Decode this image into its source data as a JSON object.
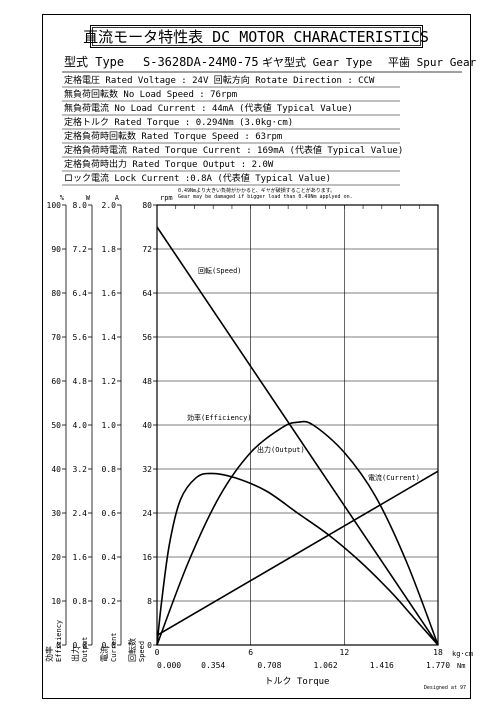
{
  "title": "直流モータ特性表 DC MOTOR CHARACTERISTICS",
  "type_row": {
    "model_label": "型式 Type",
    "model_value": "S-3628DA-24M0-75",
    "gear_label": "ギヤ型式 Gear Type",
    "gear_value": "平歯  Spur Gear"
  },
  "specs": [
    "定格電圧 Rated Voltage : 24V   回転方向 Rotate Direction : CCW",
    "無負荷回転数 No Load Speed : 76rpm",
    "無負荷電流 No Load Current : 44mA (代表値 Typical Value)",
    "定格トルク Rated Torque : 0.294Nm (3.0kg·cm)",
    "定格負荷時回転数 Rated Torque Speed : 63rpm",
    "定格負荷時電流 Rated Torque Current : 169mA (代表値 Typical Value)",
    "定格負荷時出力 Rated Torque Output : 2.0W",
    "ロック電流 Lock Current :0.8A (代表値 Typical Value)"
  ],
  "warning": [
    "0.49Nmより大きい負荷がかかると、ギヤが破損することがあります。",
    "Gear may be damaged if bigger load than 0.49Nm applyed on."
  ],
  "footer": "Designed at 97",
  "chart_data": {
    "type": "line",
    "xlabel": "トルク Torque",
    "x_kgcm_unit": "kg·cm",
    "x_nm_unit": "Nm",
    "x_kgcm_ticks": [
      "0",
      "6",
      "12",
      "18"
    ],
    "x_nm_ticks": [
      "0.000",
      "0.354",
      "0.708",
      "1.062",
      "1.416",
      "1.770"
    ],
    "xlim_kgcm": [
      0,
      18
    ],
    "axes": [
      {
        "unit": "%",
        "name": "効率 Efficiency",
        "ticks": [
          "100",
          "90",
          "80",
          "70",
          "60",
          "50",
          "40",
          "30",
          "20",
          "10",
          "0"
        ],
        "range": [
          0,
          100
        ]
      },
      {
        "unit": "W",
        "name": "出力 Output",
        "ticks": [
          "8.0",
          "7.2",
          "6.4",
          "5.6",
          "4.8",
          "4.0",
          "3.2",
          "2.4",
          "1.6",
          "0.8",
          "0.0"
        ],
        "range": [
          0,
          8
        ]
      },
      {
        "unit": "A",
        "name": "電流 Current",
        "ticks": [
          "2.0",
          "1.8",
          "1.6",
          "1.4",
          "1.2",
          "1.0",
          "0.8",
          "0.6",
          "0.4",
          "0.2",
          "0.0"
        ],
        "range": [
          0,
          2
        ]
      },
      {
        "unit": "rpm",
        "name": "回転数 Speed",
        "ticks": [
          "80",
          "72",
          "64",
          "56",
          "48",
          "40",
          "32",
          "24",
          "16",
          "8",
          "0"
        ],
        "range": [
          0,
          80
        ]
      }
    ],
    "series": [
      {
        "name": "回転(Speed)",
        "axis": 3,
        "x": [
          0,
          18
        ],
        "y": [
          76,
          0
        ]
      },
      {
        "name": "電流(Current)",
        "axis": 2,
        "x": [
          0,
          18
        ],
        "y": [
          0.044,
          0.79
        ]
      },
      {
        "name": "出力(Output)",
        "axis": 1,
        "x": [
          0,
          2,
          4,
          6,
          8,
          9,
          10,
          12,
          14,
          16,
          18
        ],
        "y": [
          0,
          1.5,
          2.7,
          3.5,
          3.95,
          4.05,
          4.0,
          3.5,
          2.7,
          1.5,
          0
        ]
      },
      {
        "name": "効率(Efficiency)",
        "axis": 0,
        "x": [
          0,
          0.3,
          0.8,
          1.5,
          2.5,
          3.5,
          5,
          7,
          9,
          11,
          13,
          15,
          16.5,
          18
        ],
        "y": [
          0,
          10,
          23,
          33,
          38,
          39,
          38,
          35,
          30,
          25,
          19,
          12,
          6,
          0
        ]
      }
    ]
  }
}
